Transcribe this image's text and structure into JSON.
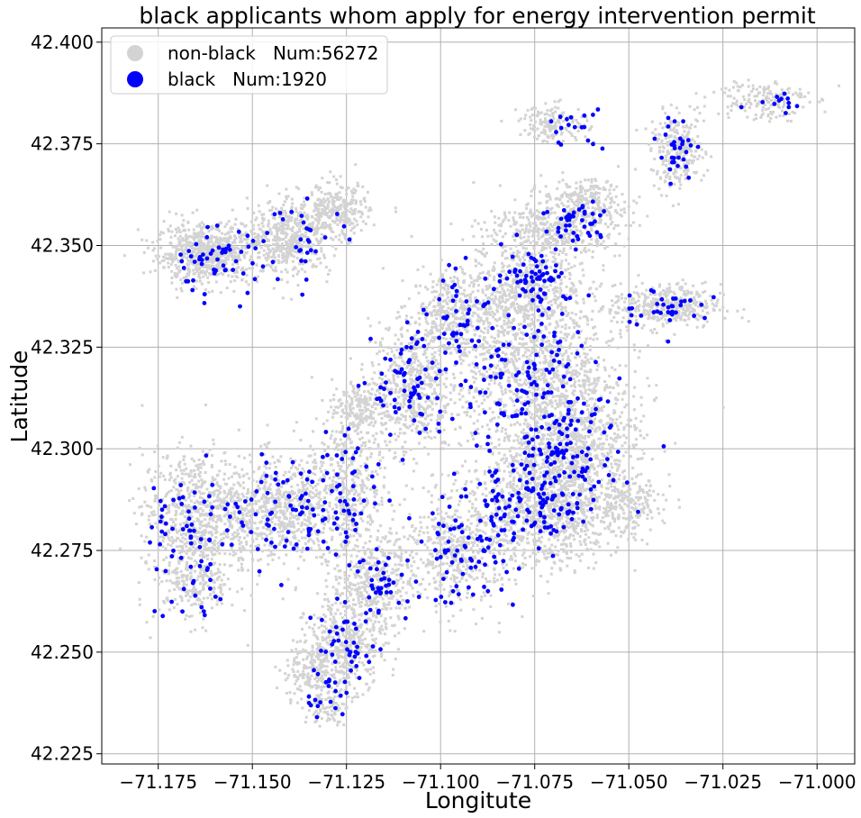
{
  "chart_data": {
    "type": "scatter",
    "title": "black applicants whom apply for energy intervention permit",
    "xlabel": "Longitute",
    "ylabel": "Latitude",
    "xlim": [
      -71.19,
      -70.99
    ],
    "ylim": [
      42.2225,
      42.4035
    ],
    "xticks": [
      -71.175,
      -71.15,
      -71.125,
      -71.1,
      -71.075,
      -71.05,
      -71.025,
      -71.0
    ],
    "xtick_labels": [
      "−71.175",
      "−71.150",
      "−71.125",
      "−71.100",
      "−71.075",
      "−71.050",
      "−71.025",
      "−71.000"
    ],
    "yticks": [
      42.225,
      42.25,
      42.275,
      42.3,
      42.325,
      42.35,
      42.375,
      42.4
    ],
    "ytick_labels": [
      "42.225",
      "42.250",
      "42.275",
      "42.300",
      "42.325",
      "42.350",
      "42.375",
      "42.400"
    ],
    "grid": true,
    "legend_position": "top-left",
    "series": [
      {
        "name": "non-black   Num:56272",
        "color": "#d3d3d3",
        "clusters": [
          {
            "x": -71.162,
            "y": 42.348,
            "sx": 0.0075,
            "sy": 0.004,
            "n": 700
          },
          {
            "x": -71.14,
            "y": 42.352,
            "sx": 0.006,
            "sy": 0.005,
            "n": 450
          },
          {
            "x": -71.128,
            "y": 42.358,
            "sx": 0.005,
            "sy": 0.004,
            "n": 300
          },
          {
            "x": -71.07,
            "y": 42.38,
            "sx": 0.005,
            "sy": 0.0025,
            "n": 160
          },
          {
            "x": -71.037,
            "y": 42.373,
            "sx": 0.004,
            "sy": 0.005,
            "n": 260
          },
          {
            "x": -71.015,
            "y": 42.386,
            "sx": 0.007,
            "sy": 0.003,
            "n": 160
          },
          {
            "x": -71.07,
            "y": 42.354,
            "sx": 0.01,
            "sy": 0.004,
            "n": 420
          },
          {
            "x": -71.062,
            "y": 42.361,
            "sx": 0.006,
            "sy": 0.003,
            "n": 220
          },
          {
            "x": -71.078,
            "y": 42.34,
            "sx": 0.008,
            "sy": 0.006,
            "n": 450
          },
          {
            "x": -71.04,
            "y": 42.335,
            "sx": 0.008,
            "sy": 0.003,
            "n": 380
          },
          {
            "x": -71.097,
            "y": 42.333,
            "sx": 0.006,
            "sy": 0.006,
            "n": 350
          },
          {
            "x": -71.108,
            "y": 42.315,
            "sx": 0.006,
            "sy": 0.009,
            "n": 550
          },
          {
            "x": -71.075,
            "y": 42.32,
            "sx": 0.013,
            "sy": 0.012,
            "n": 1100
          },
          {
            "x": -71.065,
            "y": 42.3,
            "sx": 0.01,
            "sy": 0.01,
            "n": 900
          },
          {
            "x": -71.072,
            "y": 42.285,
            "sx": 0.011,
            "sy": 0.008,
            "n": 900
          },
          {
            "x": -71.095,
            "y": 42.275,
            "sx": 0.008,
            "sy": 0.008,
            "n": 500
          },
          {
            "x": -71.118,
            "y": 42.268,
            "sx": 0.006,
            "sy": 0.006,
            "n": 380
          },
          {
            "x": -71.125,
            "y": 42.29,
            "sx": 0.006,
            "sy": 0.01,
            "n": 450
          },
          {
            "x": -71.122,
            "y": 42.31,
            "sx": 0.004,
            "sy": 0.004,
            "n": 160
          },
          {
            "x": -71.165,
            "y": 42.285,
            "sx": 0.008,
            "sy": 0.008,
            "n": 650
          },
          {
            "x": -71.143,
            "y": 42.285,
            "sx": 0.008,
            "sy": 0.007,
            "n": 600
          },
          {
            "x": -71.165,
            "y": 42.268,
            "sx": 0.006,
            "sy": 0.006,
            "n": 280
          },
          {
            "x": -71.125,
            "y": 42.252,
            "sx": 0.006,
            "sy": 0.006,
            "n": 380
          },
          {
            "x": -71.133,
            "y": 42.245,
            "sx": 0.005,
            "sy": 0.005,
            "n": 220
          },
          {
            "x": -71.13,
            "y": 42.236,
            "sx": 0.003,
            "sy": 0.002,
            "n": 60
          },
          {
            "x": -71.05,
            "y": 42.286,
            "sx": 0.005,
            "sy": 0.004,
            "n": 160
          }
        ]
      },
      {
        "name": "black   Num:1920",
        "color": "#0000ff",
        "clusters": [
          {
            "x": -71.16,
            "y": 42.346,
            "sx": 0.0075,
            "sy": 0.005,
            "n": 55
          },
          {
            "x": -71.135,
            "y": 42.352,
            "sx": 0.006,
            "sy": 0.005,
            "n": 30
          },
          {
            "x": -71.065,
            "y": 42.379,
            "sx": 0.005,
            "sy": 0.003,
            "n": 18
          },
          {
            "x": -71.037,
            "y": 42.373,
            "sx": 0.003,
            "sy": 0.005,
            "n": 30
          },
          {
            "x": -71.01,
            "y": 42.387,
            "sx": 0.005,
            "sy": 0.002,
            "n": 12
          },
          {
            "x": -71.063,
            "y": 42.355,
            "sx": 0.006,
            "sy": 0.004,
            "n": 45
          },
          {
            "x": -71.075,
            "y": 42.343,
            "sx": 0.005,
            "sy": 0.004,
            "n": 60
          },
          {
            "x": -71.04,
            "y": 42.335,
            "sx": 0.007,
            "sy": 0.003,
            "n": 35
          },
          {
            "x": -71.095,
            "y": 42.333,
            "sx": 0.006,
            "sy": 0.006,
            "n": 40
          },
          {
            "x": -71.108,
            "y": 42.315,
            "sx": 0.006,
            "sy": 0.009,
            "n": 70
          },
          {
            "x": -71.078,
            "y": 42.318,
            "sx": 0.011,
            "sy": 0.011,
            "n": 130
          },
          {
            "x": -71.068,
            "y": 42.298,
            "sx": 0.009,
            "sy": 0.009,
            "n": 120
          },
          {
            "x": -71.078,
            "y": 42.284,
            "sx": 0.01,
            "sy": 0.007,
            "n": 110
          },
          {
            "x": -71.095,
            "y": 42.274,
            "sx": 0.007,
            "sy": 0.007,
            "n": 60
          },
          {
            "x": -71.115,
            "y": 42.266,
            "sx": 0.005,
            "sy": 0.005,
            "n": 40
          },
          {
            "x": -71.125,
            "y": 42.29,
            "sx": 0.006,
            "sy": 0.01,
            "n": 55
          },
          {
            "x": -71.165,
            "y": 42.283,
            "sx": 0.008,
            "sy": 0.007,
            "n": 55
          },
          {
            "x": -71.14,
            "y": 42.284,
            "sx": 0.008,
            "sy": 0.007,
            "n": 60
          },
          {
            "x": -71.166,
            "y": 42.265,
            "sx": 0.006,
            "sy": 0.006,
            "n": 22
          },
          {
            "x": -71.125,
            "y": 42.25,
            "sx": 0.006,
            "sy": 0.006,
            "n": 45
          },
          {
            "x": -71.132,
            "y": 42.24,
            "sx": 0.004,
            "sy": 0.004,
            "n": 15
          }
        ]
      }
    ]
  }
}
